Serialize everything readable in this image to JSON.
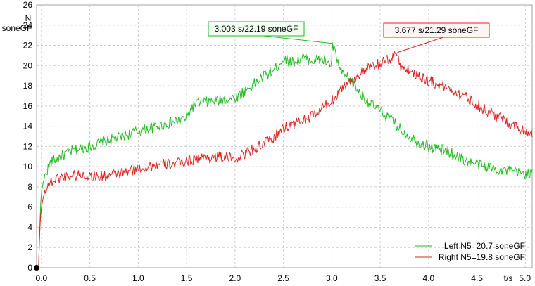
{
  "chart_data": {
    "type": "line",
    "ylabel_lines": [
      "N",
      "soneGF"
    ],
    "xlabel": "t/s",
    "xlim": [
      -0.05,
      5.07
    ],
    "ylim": [
      0,
      26
    ],
    "x_ticks": [
      "0.0",
      "0.5",
      "1.0",
      "1.5",
      "2.0",
      "2.5",
      "3.0",
      "3.5",
      "4.0",
      "4.5",
      "5.0"
    ],
    "x_tick_values": [
      0,
      0.5,
      1,
      1.5,
      2,
      2.5,
      3,
      3.5,
      4,
      4.5,
      5
    ],
    "y_ticks": [
      "0",
      "2",
      "4",
      "6",
      "8",
      "10",
      "12",
      "14",
      "16",
      "18",
      "20",
      "22",
      "24",
      "26"
    ],
    "y_tick_values": [
      0,
      2,
      4,
      6,
      8,
      10,
      12,
      14,
      16,
      18,
      20,
      22,
      24,
      26
    ],
    "grid": true,
    "legend_position": "bottom-right",
    "series": [
      {
        "name": "Left N5=20.7 soneGF",
        "color": "#22bb22",
        "x": [
          -0.03,
          -0.02,
          -0.01,
          0.0,
          0.02,
          0.05,
          0.1,
          0.2,
          0.3,
          0.5,
          0.7,
          0.9,
          1.0,
          1.2,
          1.4,
          1.5,
          1.55,
          1.6,
          1.8,
          2.0,
          2.1,
          2.2,
          2.3,
          2.4,
          2.5,
          2.6,
          2.7,
          2.8,
          2.9,
          3.0,
          3.003,
          3.1,
          3.2,
          3.3,
          3.4,
          3.5,
          3.6,
          3.7,
          3.8,
          3.9,
          4.0,
          4.2,
          4.4,
          4.6,
          4.8,
          5.0,
          5.07
        ],
        "y": [
          0,
          3,
          6,
          7.5,
          8.5,
          9.5,
          10.5,
          11.0,
          11.5,
          12.0,
          12.6,
          13.2,
          13.5,
          14.0,
          14.5,
          14.8,
          15.8,
          16.3,
          16.5,
          16.8,
          17.5,
          18.2,
          19.0,
          19.5,
          20.7,
          20.3,
          20.8,
          20.5,
          20.6,
          20.0,
          22.19,
          19.2,
          18.5,
          17.2,
          16.2,
          15.5,
          14.8,
          13.8,
          13.0,
          12.4,
          12.0,
          11.5,
          10.5,
          10.0,
          9.6,
          9.3,
          9.3
        ]
      },
      {
        "name": "Right N5=19.8 soneGF",
        "color": "#dd2222",
        "x": [
          -0.03,
          -0.02,
          -0.01,
          0.0,
          0.02,
          0.05,
          0.1,
          0.2,
          0.4,
          0.6,
          0.8,
          1.0,
          1.2,
          1.4,
          1.6,
          1.8,
          2.0,
          2.2,
          2.4,
          2.5,
          2.6,
          2.8,
          3.0,
          3.1,
          3.2,
          3.3,
          3.4,
          3.5,
          3.6,
          3.677,
          3.7,
          3.8,
          4.0,
          4.2,
          4.4,
          4.6,
          4.8,
          5.0,
          5.07
        ],
        "y": [
          0,
          3,
          5,
          6,
          7,
          8,
          8.5,
          9.0,
          9.2,
          9.0,
          9.3,
          9.8,
          10.2,
          10.3,
          10.8,
          11.0,
          10.8,
          11.8,
          12.8,
          13.8,
          14.2,
          15.0,
          16.5,
          17.8,
          18.5,
          19.2,
          19.8,
          20.2,
          20.6,
          21.29,
          20.0,
          19.5,
          18.5,
          17.8,
          16.8,
          15.5,
          14.5,
          13.5,
          13.3
        ]
      }
    ],
    "annotations": [
      {
        "text": "3.003 s/22.19 soneGF",
        "x": 3.003,
        "y": 22.19,
        "color": "#22bb22"
      },
      {
        "text": "3.677 s/21.29 soneGF",
        "x": 3.677,
        "y": 21.29,
        "color": "#dd2222"
      }
    ]
  }
}
